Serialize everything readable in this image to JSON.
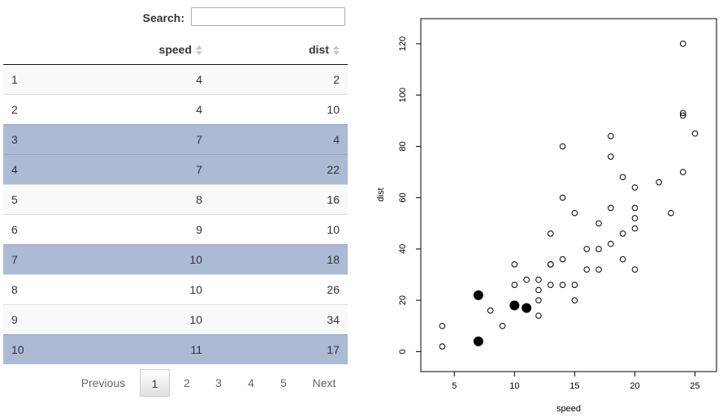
{
  "search": {
    "label": "Search:",
    "value": "",
    "placeholder": ""
  },
  "table": {
    "columns": [
      {
        "label": ""
      },
      {
        "label": "speed"
      },
      {
        "label": "dist"
      }
    ],
    "rows": [
      {
        "idx": "1",
        "speed": "4",
        "dist": "2",
        "selected": false
      },
      {
        "idx": "2",
        "speed": "4",
        "dist": "10",
        "selected": false
      },
      {
        "idx": "3",
        "speed": "7",
        "dist": "4",
        "selected": true
      },
      {
        "idx": "4",
        "speed": "7",
        "dist": "22",
        "selected": true
      },
      {
        "idx": "5",
        "speed": "8",
        "dist": "16",
        "selected": false
      },
      {
        "idx": "6",
        "speed": "9",
        "dist": "10",
        "selected": false
      },
      {
        "idx": "7",
        "speed": "10",
        "dist": "18",
        "selected": true
      },
      {
        "idx": "8",
        "speed": "10",
        "dist": "26",
        "selected": false
      },
      {
        "idx": "9",
        "speed": "10",
        "dist": "34",
        "selected": false
      },
      {
        "idx": "10",
        "speed": "11",
        "dist": "17",
        "selected": true
      }
    ]
  },
  "pagination": {
    "previous": "Previous",
    "pages": [
      "1",
      "2",
      "3",
      "4",
      "5"
    ],
    "current": "1",
    "next": "Next"
  },
  "colors": {
    "selected_row": "#acbad4",
    "odd_row": "#f9f9f9"
  },
  "chart_data": {
    "type": "scatter",
    "title": "",
    "xlabel": "speed",
    "ylabel": "dist",
    "xlim": [
      3.16,
      25.84
    ],
    "ylim": [
      -2.72,
      124.72
    ],
    "xticks": [
      5,
      10,
      15,
      20,
      25
    ],
    "yticks": [
      0,
      20,
      40,
      60,
      80,
      100,
      120
    ],
    "grid": false,
    "series": [
      {
        "x": [
          4,
          4,
          7,
          7,
          8,
          9,
          10,
          10,
          10,
          11,
          11,
          12,
          12,
          12,
          12,
          13,
          13,
          13,
          13,
          14,
          14,
          14,
          14,
          15,
          15,
          15,
          16,
          16,
          17,
          17,
          17,
          18,
          18,
          18,
          18,
          19,
          19,
          19,
          20,
          20,
          20,
          20,
          20,
          22,
          23,
          24,
          24,
          24,
          24,
          25
        ],
        "y": [
          2,
          10,
          4,
          22,
          16,
          10,
          18,
          26,
          34,
          17,
          28,
          14,
          20,
          24,
          28,
          26,
          34,
          34,
          46,
          26,
          36,
          60,
          80,
          20,
          26,
          54,
          32,
          40,
          32,
          40,
          50,
          42,
          56,
          76,
          84,
          36,
          46,
          68,
          32,
          48,
          52,
          56,
          64,
          66,
          54,
          70,
          92,
          93,
          120,
          85
        ]
      }
    ],
    "highlighted": {
      "x": [
        7,
        7,
        10,
        11
      ],
      "y": [
        4,
        22,
        18,
        17
      ]
    }
  }
}
